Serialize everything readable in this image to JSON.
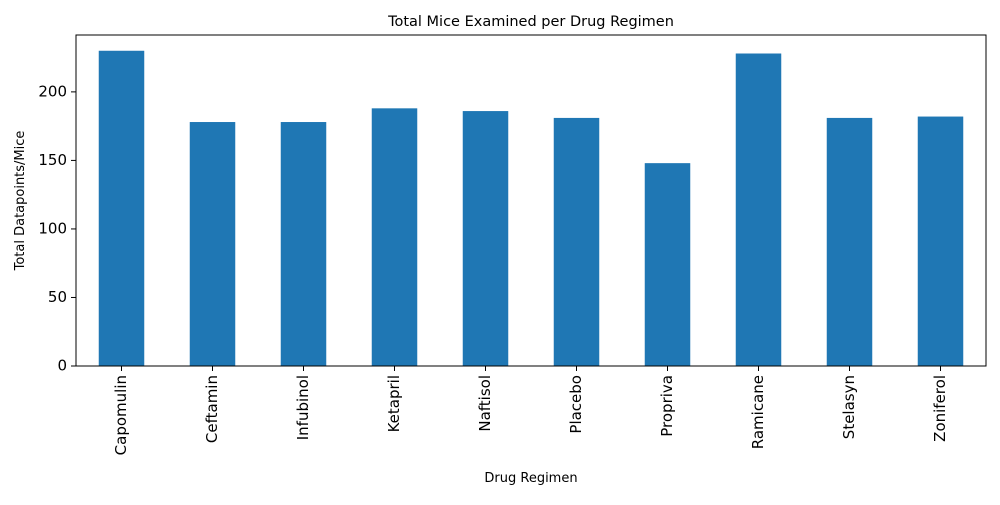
{
  "chart_data": {
    "type": "bar",
    "title": "Total Mice Examined per Drug Regimen",
    "xlabel": "Drug Regimen",
    "ylabel": "Total Datapoints/Mice",
    "categories": [
      "Capomulin",
      "Ceftamin",
      "Infubinol",
      "Ketapril",
      "Naftisol",
      "Placebo",
      "Propriva",
      "Ramicane",
      "Stelasyn",
      "Zoniferol"
    ],
    "values": [
      230,
      178,
      178,
      188,
      186,
      181,
      148,
      228,
      181,
      182
    ],
    "ylim": [
      0,
      241.5
    ],
    "yticks": [
      0,
      50,
      100,
      150,
      200
    ],
    "grid": false,
    "legend": "none",
    "bar_color": "#1f77b4"
  }
}
